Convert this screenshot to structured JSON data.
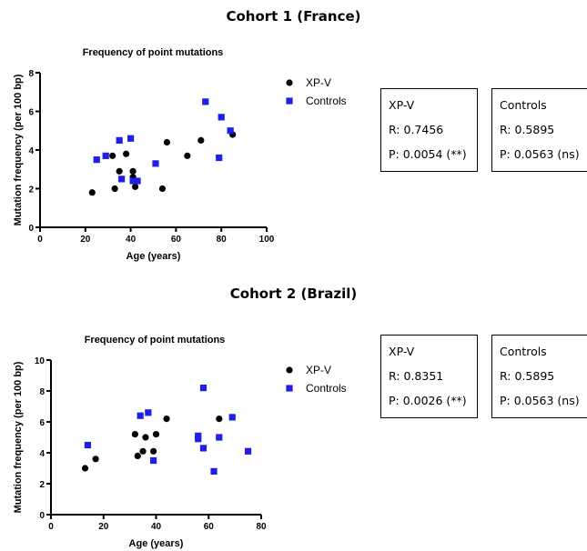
{
  "chart_data": [
    {
      "type": "scatter",
      "cohort_title": "Cohort 1 (France)",
      "title": "Frequency of point mutations",
      "xlabel": "Age (years)",
      "ylabel": "Mutation frequency (per 100 bp)",
      "xlim": [
        0,
        100
      ],
      "ylim": [
        0,
        8
      ],
      "xticks": [
        "0",
        "20",
        "40",
        "60",
        "80",
        "100"
      ],
      "yticks": [
        "0",
        "2",
        "4",
        "6",
        "8"
      ],
      "grid": false,
      "legend_position": "right",
      "series": [
        {
          "name": "XP-V",
          "marker": "circle",
          "color": "#000000",
          "points": [
            [
              23,
              1.8
            ],
            [
              32,
              3.7
            ],
            [
              33,
              2.0
            ],
            [
              35,
              2.9
            ],
            [
              38,
              3.8
            ],
            [
              41,
              2.9
            ],
            [
              41,
              2.6
            ],
            [
              42,
              2.1
            ],
            [
              54,
              2.0
            ],
            [
              56,
              4.4
            ],
            [
              65,
              3.7
            ],
            [
              71,
              4.5
            ],
            [
              85,
              4.8
            ]
          ]
        },
        {
          "name": "Controls",
          "marker": "square",
          "color": "#1f1fe6",
          "points": [
            [
              25,
              3.5
            ],
            [
              29,
              3.7
            ],
            [
              35,
              4.5
            ],
            [
              36,
              2.5
            ],
            [
              40,
              4.6
            ],
            [
              41,
              2.4
            ],
            [
              43,
              2.4
            ],
            [
              51,
              3.3
            ],
            [
              73,
              6.5
            ],
            [
              79,
              3.6
            ],
            [
              80,
              5.7
            ],
            [
              84,
              5.0
            ]
          ]
        }
      ],
      "stats": [
        {
          "group": "XP-V",
          "r": "R: 0.7456",
          "p": "P: 0.0054 (**)"
        },
        {
          "group": "Controls",
          "r": "R: 0.5895",
          "p": "P: 0.0563 (ns)"
        }
      ]
    },
    {
      "type": "scatter",
      "cohort_title": "Cohort 2 (Brazil)",
      "title": "Frequency of point mutations",
      "xlabel": "Age (years)",
      "ylabel": "Mutation frequency (per 100 bp)",
      "xlim": [
        0,
        80
      ],
      "ylim": [
        0,
        10
      ],
      "xticks": [
        "0",
        "20",
        "40",
        "60",
        "80"
      ],
      "yticks": [
        "0",
        "2",
        "4",
        "6",
        "8",
        "10"
      ],
      "grid": false,
      "legend_position": "right",
      "series": [
        {
          "name": "XP-V",
          "marker": "circle",
          "color": "#000000",
          "points": [
            [
              13,
              3.0
            ],
            [
              17,
              3.6
            ],
            [
              32,
              5.2
            ],
            [
              33,
              3.8
            ],
            [
              35,
              4.1
            ],
            [
              36,
              5.0
            ],
            [
              39,
              4.1
            ],
            [
              40,
              5.2
            ],
            [
              44,
              6.2
            ],
            [
              64,
              6.2
            ]
          ]
        },
        {
          "name": "Controls",
          "marker": "square",
          "color": "#1f1fe6",
          "points": [
            [
              14,
              4.5
            ],
            [
              34,
              6.4
            ],
            [
              37,
              6.6
            ],
            [
              39,
              3.5
            ],
            [
              56,
              5.1
            ],
            [
              56,
              4.9
            ],
            [
              58,
              8.2
            ],
            [
              58,
              4.3
            ],
            [
              62,
              2.8
            ],
            [
              64,
              5.0
            ],
            [
              69,
              6.3
            ],
            [
              75,
              4.1
            ]
          ]
        }
      ],
      "stats": [
        {
          "group": "XP-V",
          "r": "R: 0.8351",
          "p": "P: 0.0026 (**)"
        },
        {
          "group": "Controls",
          "r": "R: 0.5895",
          "p": "P: 0.0563 (ns)"
        }
      ]
    }
  ]
}
